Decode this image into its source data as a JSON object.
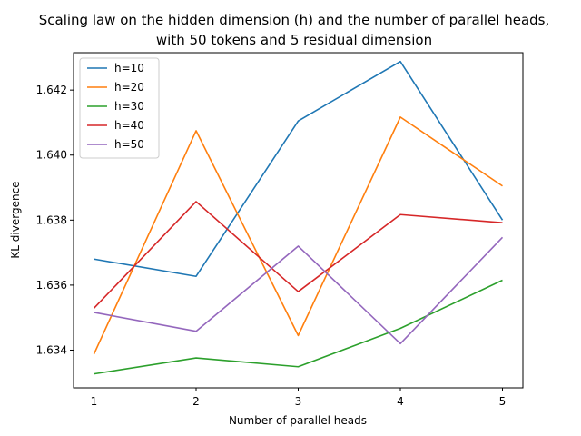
{
  "chart_data": {
    "type": "line",
    "title_lines": [
      "Scaling law on the hidden dimension (h) and the number of parallel heads,",
      "with 50 tokens and 5 residual dimension"
    ],
    "xlabel": "Number of parallel heads",
    "ylabel": "KL divergence",
    "x": [
      1,
      2,
      3,
      4,
      5
    ],
    "xlim": [
      0.8,
      5.2
    ],
    "ylim": [
      1.63284,
      1.64315
    ],
    "xticks": [
      1,
      2,
      3,
      4,
      5
    ],
    "yticks": [
      1.634,
      1.636,
      1.638,
      1.64,
      1.642
    ],
    "ytick_labels": [
      "1.634",
      "1.636",
      "1.638",
      "1.640",
      "1.642"
    ],
    "grid": false,
    "legend_position": "top-left",
    "series": [
      {
        "name": "h=10",
        "color": "#1f77b4",
        "values": [
          1.6368,
          1.63627,
          1.64105,
          1.64288,
          1.638
        ]
      },
      {
        "name": "h=20",
        "color": "#ff7f0e",
        "values": [
          1.63388,
          1.64075,
          1.63445,
          1.64117,
          1.63905
        ]
      },
      {
        "name": "h=30",
        "color": "#2ca02c",
        "values": [
          1.63327,
          1.63376,
          1.63349,
          1.63467,
          1.63615
        ]
      },
      {
        "name": "h=40",
        "color": "#d62728",
        "values": [
          1.63529,
          1.63857,
          1.6358,
          1.63817,
          1.63792
        ]
      },
      {
        "name": "h=50",
        "color": "#9467bd",
        "values": [
          1.63516,
          1.63458,
          1.6372,
          1.6342,
          1.63747
        ]
      }
    ]
  }
}
